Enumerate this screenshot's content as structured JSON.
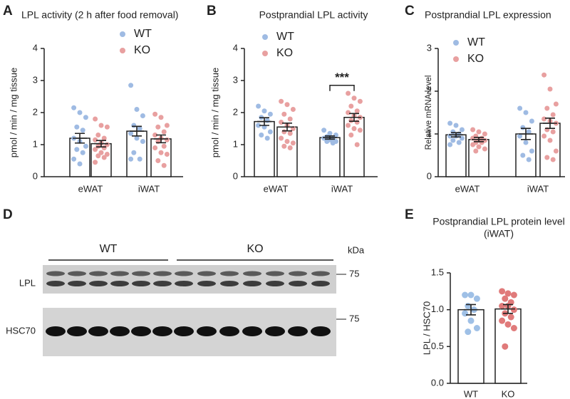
{
  "chart_data": [
    {
      "panel": "A",
      "type": "bar",
      "title": "LPL activity (2 h after food removal)",
      "ylabel": "pmol / min / mg tissue",
      "categories": [
        "eWAT",
        "iWAT"
      ],
      "series": [
        {
          "name": "WT",
          "color": "#9fbbe3",
          "values": [
            1.2,
            1.42
          ],
          "errors": [
            0.15,
            0.15
          ],
          "points": [
            [
              2.15,
              2.0,
              1.85,
              1.55,
              1.45,
              1.2,
              1.1,
              0.95,
              0.85,
              0.75,
              0.55,
              0.4
            ],
            [
              2.85,
              2.1,
              1.9,
              1.6,
              1.5,
              1.35,
              1.2,
              1.1,
              0.75,
              0.55,
              0.55
            ]
          ]
        },
        {
          "name": "KO",
          "color": "#e8a0a0",
          "values": [
            1.03,
            1.18
          ],
          "errors": [
            0.1,
            0.12
          ],
          "points": [
            [
              1.8,
              1.6,
              1.55,
              1.3,
              1.2,
              1.15,
              1.05,
              1.0,
              0.95,
              0.9,
              0.85,
              0.75,
              0.7,
              0.65,
              0.6,
              0.45
            ],
            [
              1.95,
              1.85,
              1.6,
              1.55,
              1.4,
              1.3,
              1.2,
              1.15,
              1.1,
              0.95,
              0.9,
              0.75,
              0.7,
              0.5,
              0.35
            ]
          ]
        }
      ],
      "ylim": [
        0,
        4
      ],
      "yticks": [
        0,
        1,
        2,
        3,
        4
      ]
    },
    {
      "panel": "B",
      "type": "bar",
      "title": "Postprandial LPL activity",
      "ylabel": "pmol / min / mg tissue",
      "categories": [
        "eWAT",
        "iWAT"
      ],
      "series": [
        {
          "name": "WT",
          "color": "#9fbbe3",
          "values": [
            1.72,
            1.22
          ],
          "errors": [
            0.12,
            0.05
          ],
          "points": [
            [
              2.2,
              2.05,
              1.95,
              1.85,
              1.75,
              1.6,
              1.55,
              1.4,
              1.3,
              1.2
            ],
            [
              1.45,
              1.35,
              1.3,
              1.25,
              1.2,
              1.2,
              1.15,
              1.1,
              1.1,
              1.05
            ]
          ]
        },
        {
          "name": "KO",
          "color": "#e8a0a0",
          "values": [
            1.55,
            1.85
          ],
          "errors": [
            0.12,
            0.12
          ],
          "points": [
            [
              2.35,
              2.25,
              2.1,
              1.95,
              1.8,
              1.7,
              1.6,
              1.5,
              1.4,
              1.35,
              1.2,
              1.1,
              1.05,
              0.95,
              0.9
            ],
            [
              2.6,
              2.45,
              2.35,
              2.2,
              2.05,
              2.0,
              1.9,
              1.85,
              1.75,
              1.7,
              1.6,
              1.5,
              1.45,
              1.3,
              1.0
            ]
          ]
        }
      ],
      "ylim": [
        0,
        4
      ],
      "yticks": [
        0,
        1,
        2,
        3,
        4
      ],
      "annotation": "***"
    },
    {
      "panel": "C",
      "type": "bar",
      "title": "Postprandial LPL expression",
      "ylabel": "Relative mRNA level",
      "categories": [
        "eWAT",
        "iWAT"
      ],
      "series": [
        {
          "name": "WT",
          "color": "#9fbbe3",
          "values": [
            0.98,
            1.0
          ],
          "errors": [
            0.05,
            0.13
          ],
          "points": [
            [
              1.25,
              1.2,
              1.1,
              1.05,
              1.0,
              0.95,
              0.95,
              0.9,
              0.85,
              0.8,
              0.75
            ],
            [
              1.6,
              1.5,
              1.3,
              1.15,
              1.05,
              0.95,
              0.8,
              0.6,
              0.5,
              0.4
            ]
          ]
        },
        {
          "name": "KO",
          "color": "#e8a0a0",
          "values": [
            0.87,
            1.25
          ],
          "errors": [
            0.05,
            0.12
          ],
          "points": [
            [
              1.1,
              1.05,
              1.0,
              0.95,
              0.9,
              0.9,
              0.85,
              0.85,
              0.8,
              0.8,
              0.75,
              0.7,
              0.65,
              0.6
            ],
            [
              2.38,
              2.05,
              1.7,
              1.6,
              1.45,
              1.35,
              1.3,
              1.25,
              1.1,
              1.05,
              0.95,
              0.85,
              0.6,
              0.45,
              0.4
            ]
          ]
        }
      ],
      "ylim": [
        0,
        3
      ],
      "yticks": [
        0,
        1,
        2,
        3
      ]
    },
    {
      "panel": "E",
      "type": "bar",
      "title": "Postprandial LPL protein level",
      "subtitle": "(iWAT)",
      "ylabel": "LPL / HSC70",
      "categories": [
        "WT",
        "KO"
      ],
      "colors": [
        "#9fc0e6",
        "#e07a7a"
      ],
      "values": [
        1.0,
        1.01
      ],
      "errors": [
        0.07,
        0.06
      ],
      "points": [
        [
          1.2,
          1.2,
          1.15,
          1.05,
          1.0,
          0.95,
          0.85,
          0.75,
          0.7
        ],
        [
          1.25,
          1.22,
          1.2,
          1.15,
          1.1,
          1.05,
          1.05,
          1.0,
          0.95,
          0.9,
          0.85,
          0.8,
          0.75,
          0.5
        ]
      ],
      "ylim": [
        0,
        1.5
      ],
      "yticks": [
        {
          "value": 0,
          "label": "0.0"
        },
        0.5,
        {
          "value": 1,
          "label": "1.0"
        },
        1.5
      ]
    }
  ],
  "blot": {
    "panel": "D",
    "groups": [
      "WT",
      "KO"
    ],
    "unit": "kDa",
    "rows": [
      {
        "label": "LPL",
        "marker": 75
      },
      {
        "label": "HSC70",
        "marker": 75
      }
    ]
  }
}
